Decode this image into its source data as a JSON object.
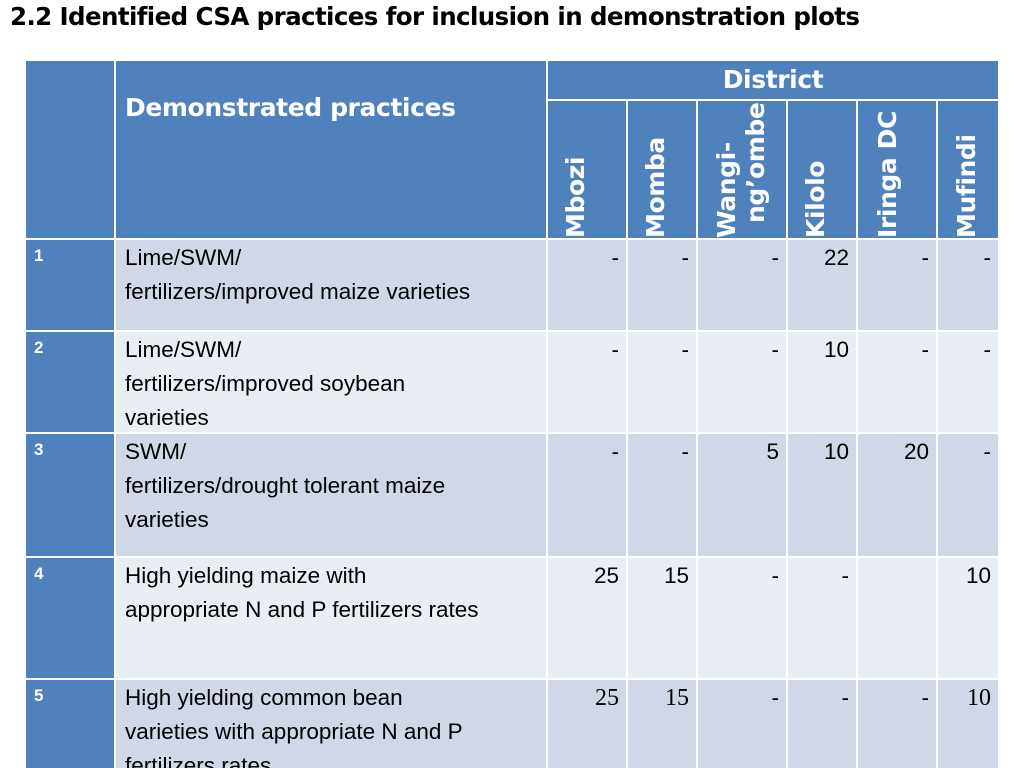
{
  "title": "2.2 Identified CSA practices for inclusion in demonstration plots",
  "table": {
    "practice_header": "Demonstrated practices",
    "district_header": "District",
    "districts": [
      "Mbozi",
      "Momba",
      "Wangi-ng’ombe",
      "Kilolo",
      "Iringa DC",
      "Mufindi"
    ],
    "districts_wrapped": {
      "wangingombe_line1": "Wangi-",
      "wangingombe_line2": "ng’ombe"
    },
    "rows": [
      {
        "num": "1",
        "lines": [
          "Lime/SWM/",
          "fertilizers/improved maize varieties"
        ],
        "values": [
          "-",
          "-",
          "-",
          "22",
          "-",
          "-"
        ]
      },
      {
        "num": "2",
        "lines": [
          "Lime/SWM/",
          "fertilizers/improved soybean",
          "varieties"
        ],
        "values": [
          "-",
          "-",
          "-",
          "10",
          "-",
          "-"
        ]
      },
      {
        "num": "3",
        "lines": [
          "SWM/",
          "fertilizers/drought tolerant maize",
          "varieties"
        ],
        "values": [
          "-",
          "-",
          "5",
          "10",
          "20",
          "-"
        ]
      },
      {
        "num": "4",
        "lines": [
          "High yielding maize with",
          "appropriate N and P fertilizers rates"
        ],
        "values": [
          "25",
          "15",
          "-",
          "-",
          "",
          "10"
        ]
      },
      {
        "num": "5",
        "lines": [
          "High yielding common bean",
          "varieties with appropriate N and P",
          "fertilizers rates"
        ],
        "values": [
          "25",
          "15",
          "-",
          "-",
          "-",
          "10"
        ]
      }
    ]
  }
}
